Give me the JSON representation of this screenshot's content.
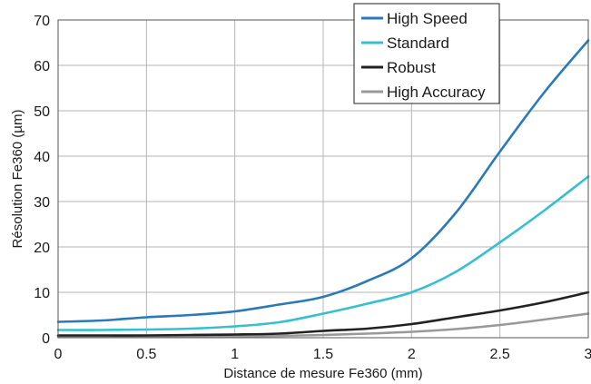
{
  "chart_data": {
    "type": "line",
    "title": "",
    "xlabel": "Distance de mesure Fe360 (mm)",
    "ylabel": "Résolution Fe360 (µm)",
    "xlim": [
      0,
      3
    ],
    "ylim": [
      0,
      70
    ],
    "x_ticks": [
      "0",
      "0.5",
      "1",
      "1.5",
      "2",
      "2.5",
      "3"
    ],
    "y_ticks": [
      "0",
      "10",
      "20",
      "30",
      "40",
      "50",
      "60",
      "70"
    ],
    "grid": true,
    "legend_position": "top-right",
    "series": [
      {
        "name": "High Speed",
        "color": "#2a7ab8",
        "x": [
          0,
          0.25,
          0.5,
          0.75,
          1.0,
          1.25,
          1.5,
          1.75,
          2.0,
          2.25,
          2.5,
          2.75,
          3.0
        ],
        "y": [
          3.5,
          3.8,
          4.5,
          5.0,
          5.8,
          7.3,
          9.0,
          12.5,
          17.5,
          27.5,
          41.0,
          54.0,
          65.5
        ]
      },
      {
        "name": "Standard",
        "color": "#36c0cf",
        "x": [
          0,
          0.25,
          0.5,
          0.75,
          1.0,
          1.25,
          1.5,
          1.75,
          2.0,
          2.25,
          2.5,
          2.75,
          3.0
        ],
        "y": [
          1.7,
          1.7,
          1.8,
          2.0,
          2.5,
          3.4,
          5.3,
          7.5,
          10.0,
          14.5,
          21.0,
          28.0,
          35.5
        ]
      },
      {
        "name": "Robust",
        "color": "#222222",
        "x": [
          0,
          0.25,
          0.5,
          0.75,
          1.0,
          1.25,
          1.5,
          1.75,
          2.0,
          2.25,
          2.5,
          2.75,
          3.0
        ],
        "y": [
          0.5,
          0.5,
          0.5,
          0.6,
          0.7,
          0.9,
          1.5,
          2.0,
          3.0,
          4.5,
          6.0,
          7.8,
          10.0
        ]
      },
      {
        "name": "High Accuracy",
        "color": "#999999",
        "x": [
          0,
          0.25,
          0.5,
          0.75,
          1.0,
          1.25,
          1.5,
          1.75,
          2.0,
          2.25,
          2.5,
          2.75,
          3.0
        ],
        "y": [
          0.2,
          0.2,
          0.2,
          0.3,
          0.3,
          0.4,
          0.6,
          0.9,
          1.3,
          1.9,
          2.8,
          4.0,
          5.3
        ]
      }
    ]
  }
}
